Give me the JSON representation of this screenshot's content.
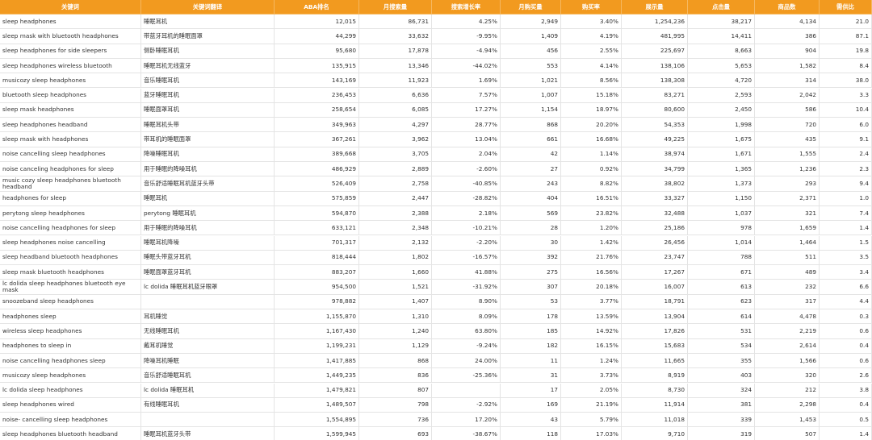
{
  "table": {
    "columns": [
      "关键词",
      "关键词翻译",
      "ABA排名",
      "月搜索量",
      "搜索增长率",
      "月购买量",
      "购买率",
      "展示量",
      "点击量",
      "商品数",
      "需供比"
    ],
    "rows": [
      [
        "sleep headphones",
        "睡眠耳机",
        "12,015",
        "86,731",
        "4.25%",
        "2,949",
        "3.40%",
        "1,254,236",
        "38,217",
        "4,134",
        "21.0"
      ],
      [
        "sleep mask with bluetooth headphones",
        "带蓝牙耳机的睡眠面罩",
        "44,299",
        "33,632",
        "-9.95%",
        "1,409",
        "4.19%",
        "481,995",
        "14,411",
        "386",
        "87.1"
      ],
      [
        "sleep headphones for side sleepers",
        "侧卧睡眠耳机",
        "95,680",
        "17,878",
        "-4.94%",
        "456",
        "2.55%",
        "225,697",
        "8,663",
        "904",
        "19.8"
      ],
      [
        "sleep headphones wireless bluetooth",
        "睡眠耳机无线蓝牙",
        "135,915",
        "13,346",
        "-44.02%",
        "553",
        "4.14%",
        "138,106",
        "5,653",
        "1,582",
        "8.4"
      ],
      [
        "musicozy sleep headphones",
        "音乐睡眠耳机",
        "143,169",
        "11,923",
        "1.69%",
        "1,021",
        "8.56%",
        "138,308",
        "4,720",
        "314",
        "38.0"
      ],
      [
        "bluetooth sleep headphones",
        "蓝牙睡眠耳机",
        "236,453",
        "6,636",
        "7.57%",
        "1,007",
        "15.18%",
        "83,271",
        "2,593",
        "2,042",
        "3.3"
      ],
      [
        "sleep mask headphones",
        "睡眠面罩耳机",
        "258,654",
        "6,085",
        "17.27%",
        "1,154",
        "18.97%",
        "80,600",
        "2,450",
        "586",
        "10.4"
      ],
      [
        "sleep headphones headband",
        "睡眠耳机头带",
        "349,963",
        "4,297",
        "28.77%",
        "868",
        "20.20%",
        "54,353",
        "1,998",
        "720",
        "6.0"
      ],
      [
        "sleep mask with headphones",
        "带耳机的睡眠面罩",
        "367,261",
        "3,962",
        "13.04%",
        "661",
        "16.68%",
        "49,225",
        "1,675",
        "435",
        "9.1"
      ],
      [
        "noise cancelling sleep headphones",
        "降噪睡眠耳机",
        "389,668",
        "3,705",
        "2.04%",
        "42",
        "1.14%",
        "38,974",
        "1,671",
        "1,555",
        "2.4"
      ],
      [
        "noise canceling headphones for sleep",
        "用于睡眠的降噪耳机",
        "486,929",
        "2,889",
        "-2.60%",
        "27",
        "0.92%",
        "34,799",
        "1,365",
        "1,236",
        "2.3"
      ],
      [
        "music cozy sleep headphones bluetooth headband",
        "音乐舒适睡眠耳机蓝牙头带",
        "526,409",
        "2,758",
        "-40.85%",
        "243",
        "8.82%",
        "38,802",
        "1,373",
        "293",
        "9.4"
      ],
      [
        "headphones for sleep",
        "睡眠耳机",
        "575,859",
        "2,447",
        "-28.82%",
        "404",
        "16.51%",
        "33,327",
        "1,150",
        "2,371",
        "1.0"
      ],
      [
        "perytong sleep headphones",
        "perytong 睡眠耳机",
        "594,870",
        "2,388",
        "2.18%",
        "569",
        "23.82%",
        "32,488",
        "1,037",
        "321",
        "7.4"
      ],
      [
        "noise cancelling headphones for sleep",
        "用于睡眠的降噪耳机",
        "633,121",
        "2,348",
        "-10.21%",
        "28",
        "1.20%",
        "25,186",
        "978",
        "1,659",
        "1.4"
      ],
      [
        "sleep headphones noise cancelling",
        "睡眠耳机降噪",
        "701,317",
        "2,132",
        "-2.20%",
        "30",
        "1.42%",
        "26,456",
        "1,014",
        "1,464",
        "1.5"
      ],
      [
        "sleep headband bluetooth headphones",
        "睡眠头带蓝牙耳机",
        "818,444",
        "1,802",
        "-16.57%",
        "392",
        "21.76%",
        "23,747",
        "788",
        "511",
        "3.5"
      ],
      [
        "sleep mask bluetooth headphones",
        "睡眠面罩蓝牙耳机",
        "883,207",
        "1,660",
        "41.88%",
        "275",
        "16.56%",
        "17,267",
        "671",
        "489",
        "3.4"
      ],
      [
        "lc dolida sleep headphones bluetooth eye mask",
        "lc dolida 睡眠耳机蓝牙眼罩",
        "954,500",
        "1,521",
        "-31.92%",
        "307",
        "20.18%",
        "16,007",
        "613",
        "232",
        "6.6"
      ],
      [
        "snoozeband sleep headphones",
        null,
        "978,882",
        "1,407",
        "8.90%",
        "53",
        "3.77%",
        "18,791",
        "623",
        "317",
        "4.4"
      ],
      [
        "headphones sleep",
        "耳机睡觉",
        "1,155,870",
        "1,310",
        "8.09%",
        "178",
        "13.59%",
        "13,904",
        "614",
        "4,478",
        "0.3"
      ],
      [
        "wireless sleep headphones",
        "无线睡眠耳机",
        "1,167,430",
        "1,240",
        "63.80%",
        "185",
        "14.92%",
        "17,826",
        "531",
        "2,219",
        "0.6"
      ],
      [
        "headphones to sleep in",
        "戴耳机睡觉",
        "1,199,231",
        "1,129",
        "-9.24%",
        "182",
        "16.15%",
        "15,683",
        "534",
        "2,614",
        "0.4"
      ],
      [
        "noise cancelling headphones sleep",
        "降噪耳机睡眠",
        "1,417,885",
        "868",
        "24.00%",
        "11",
        "1.24%",
        "11,665",
        "355",
        "1,566",
        "0.6"
      ],
      [
        "musicozy sleep headphones",
        "音乐舒适睡眠耳机",
        "1,449,235",
        "836",
        "-25.36%",
        "31",
        "3.73%",
        "8,919",
        "403",
        "320",
        "2.6"
      ],
      [
        "lc dolida sleep headphones",
        "lc dolida 睡眠耳机",
        "1,479,821",
        "807",
        null,
        "17",
        "2.05%",
        "8,730",
        "324",
        "212",
        "3.8"
      ],
      [
        "sleep headphones wired",
        "有线睡眠耳机",
        "1,489,507",
        "798",
        "-2.92%",
        "169",
        "21.19%",
        "11,914",
        "381",
        "2,298",
        "0.4"
      ],
      [
        "noise- cancelling sleep headphones",
        null,
        "1,554,895",
        "736",
        "17.20%",
        "43",
        "5.79%",
        "11,018",
        "339",
        "1,453",
        "0.5"
      ],
      [
        "sleep headphones bluetooth headband",
        "睡眠耳机蓝牙头带",
        "1,599,945",
        "693",
        "-38.67%",
        "118",
        "17.03%",
        "9,710",
        "319",
        "507",
        "1.4"
      ]
    ]
  }
}
